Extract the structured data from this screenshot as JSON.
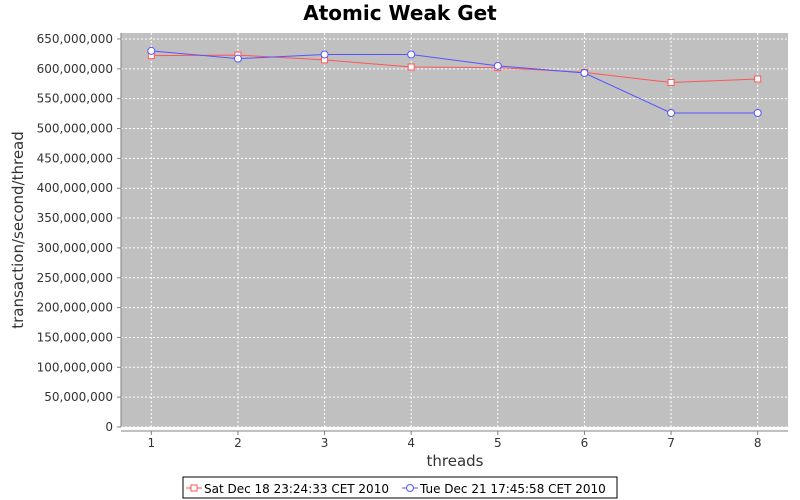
{
  "chart_data": {
    "type": "line",
    "title": "Atomic Weak Get",
    "xlabel": "threads",
    "ylabel": "transaction/second/thread",
    "x": [
      1,
      2,
      3,
      4,
      5,
      6,
      7,
      8
    ],
    "x_ticks": [
      "1",
      "2",
      "3",
      "4",
      "5",
      "6",
      "7",
      "8"
    ],
    "xlim": [
      0.65,
      8.35
    ],
    "ylim": [
      0,
      660000000
    ],
    "y_ticks": [
      0,
      50000000,
      100000000,
      150000000,
      200000000,
      250000000,
      300000000,
      350000000,
      400000000,
      450000000,
      500000000,
      550000000,
      600000000,
      650000000
    ],
    "y_tick_labels": [
      "0",
      "50,000,000",
      "100,000,000",
      "150,000,000",
      "200,000,000",
      "250,000,000",
      "300,000,000",
      "350,000,000",
      "400,000,000",
      "450,000,000",
      "500,000,000",
      "550,000,000",
      "600,000,000",
      "650,000,000"
    ],
    "grid": true,
    "legend_position": "bottom",
    "plot_background": "#c0c0c0",
    "series": [
      {
        "name": "Sat Dec 18 23:24:33 CET 2010",
        "color": "#ff5555",
        "marker": "square",
        "values": [
          622000000,
          623000000,
          615000000,
          603000000,
          602000000,
          594000000,
          577000000,
          583000000
        ]
      },
      {
        "name": "Tue Dec 21 17:45:58 CET 2010",
        "color": "#5555ff",
        "marker": "circle",
        "values": [
          630000000,
          617000000,
          624000000,
          624000000,
          605000000,
          593000000,
          526000000,
          526000000
        ]
      }
    ]
  }
}
